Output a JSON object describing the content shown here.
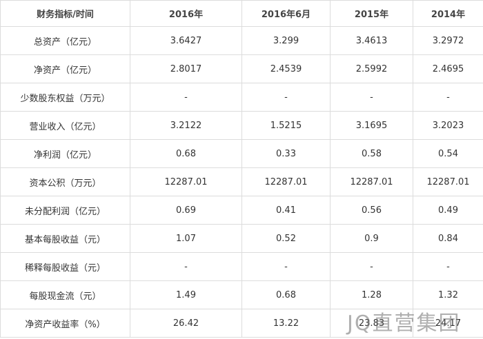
{
  "table": {
    "header": [
      "财务指标/时间",
      "2016年",
      "2016年6月",
      "2015年",
      "2014年"
    ],
    "rows": [
      [
        "总资产（亿元）",
        "3.6427",
        "3.299",
        "3.4613",
        "3.2972"
      ],
      [
        "净资产（亿元）",
        "2.8017",
        "2.4539",
        "2.5992",
        "2.4695"
      ],
      [
        "少数股东权益（万元）",
        "-",
        "-",
        "-",
        "-"
      ],
      [
        "营业收入（亿元）",
        "3.2122",
        "1.5215",
        "3.1695",
        "3.2023"
      ],
      [
        "净利润（亿元）",
        "0.68",
        "0.33",
        "0.58",
        "0.54"
      ],
      [
        "资本公积（万元）",
        "12287.01",
        "12287.01",
        "12287.01",
        "12287.01"
      ],
      [
        "未分配利润（亿元）",
        "0.69",
        "0.41",
        "0.56",
        "0.49"
      ],
      [
        "基本每股收益（元）",
        "1.07",
        "0.52",
        "0.9",
        "0.84"
      ],
      [
        "稀释每股收益（元）",
        "-",
        "-",
        "-",
        "-"
      ],
      [
        "每股现金流（元）",
        "1.49",
        "0.68",
        "1.28",
        "1.32"
      ],
      [
        "净资产收益率（%）",
        "26.42",
        "13.22",
        "23.83",
        "24.17"
      ]
    ]
  },
  "watermark": "JQ直营集团"
}
